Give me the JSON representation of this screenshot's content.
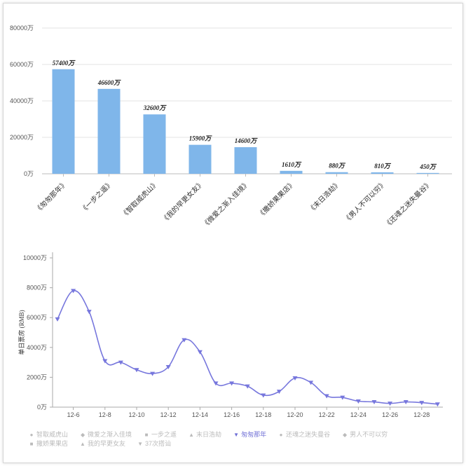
{
  "chart_data": [
    {
      "type": "bar",
      "categories": [
        "《匆匆那年》",
        "《一步之遥》",
        "《智取威虎山》",
        "《我的早更女友》",
        "《微爱之渐入佳境》",
        "《撒娇果果店》",
        "《末日浩劫》",
        "《男人不可以穷》",
        "《还魂之迷失曼谷》"
      ],
      "values": [
        57400,
        46600,
        32600,
        15900,
        14600,
        1610,
        880,
        810,
        450
      ],
      "value_labels": [
        "57400万",
        "46600万",
        "32600万",
        "15900万",
        "14600万",
        "1610万",
        "880万",
        "810万",
        "450万"
      ],
      "ylim": [
        0,
        80000
      ],
      "yticks": [
        "0万",
        "20000万",
        "40000万",
        "60000万",
        "80000万"
      ],
      "ytick_values": [
        0,
        20000,
        40000,
        60000,
        80000
      ],
      "bar_color": "#7fb6ea",
      "grid": true
    },
    {
      "type": "line",
      "ylabel": "单日票房 (RMB)",
      "ylim": [
        0,
        10000
      ],
      "yticks": [
        "0万",
        "2000万",
        "4000万",
        "6000万",
        "8000万",
        "10000万"
      ],
      "ytick_values": [
        0,
        2000,
        4000,
        6000,
        8000,
        10000
      ],
      "x": [
        "12-5",
        "12-6",
        "12-7",
        "12-8",
        "12-9",
        "12-10",
        "12-11",
        "12-12",
        "12-13",
        "12-14",
        "12-15",
        "12-16",
        "12-17",
        "12-18",
        "12-19",
        "12-20",
        "12-21",
        "12-22",
        "12-23",
        "12-24",
        "12-25",
        "12-26",
        "12-27",
        "12-28",
        "12-29"
      ],
      "xticks": [
        "12-6",
        "12-8",
        "12-10",
        "12-12",
        "12-14",
        "12-16",
        "12-18",
        "12-20",
        "12-22",
        "12-24",
        "12-26",
        "12-28"
      ],
      "series": [
        {
          "name": "匆匆那年",
          "color": "#7777dd",
          "values": [
            5900,
            7800,
            6400,
            3100,
            3000,
            2500,
            2250,
            2700,
            4500,
            3700,
            1600,
            1600,
            1400,
            800,
            1050,
            1950,
            1650,
            750,
            650,
            400,
            350,
            250,
            350,
            300,
            200
          ]
        }
      ],
      "legend": [
        {
          "name": "智取威虎山",
          "marker": "●",
          "active": false
        },
        {
          "name": "微爱之渐入佳境",
          "marker": "◆",
          "active": false
        },
        {
          "name": "一步之遥",
          "marker": "■",
          "active": false
        },
        {
          "name": "末日浩劫",
          "marker": "▲",
          "active": false
        },
        {
          "name": "匆匆那年",
          "marker": "▼",
          "active": true
        },
        {
          "name": "还魂之迷失曼谷",
          "marker": "●",
          "active": false
        },
        {
          "name": "男人不可以穷",
          "marker": "◆",
          "active": false
        },
        {
          "name": "撒娇果果店",
          "marker": "■",
          "active": false
        },
        {
          "name": "我的早更女友",
          "marker": "▲",
          "active": false
        },
        {
          "name": "37次搭讪",
          "marker": "▼",
          "active": false
        }
      ],
      "grid": false
    }
  ]
}
